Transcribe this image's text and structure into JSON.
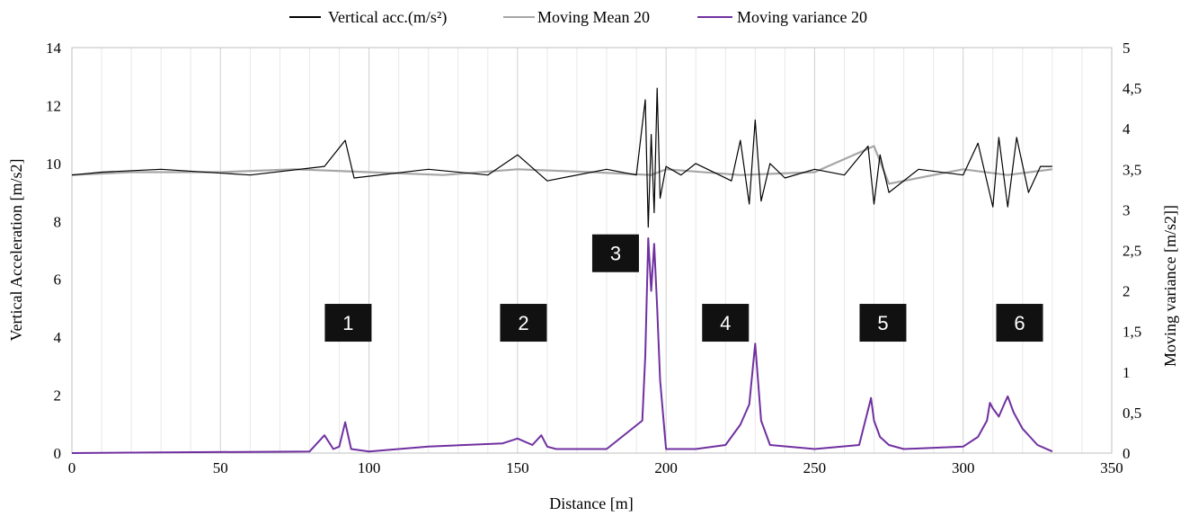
{
  "chart_data": {
    "type": "line",
    "xlabel": "Distance [m]",
    "ylabel": "Vertical Acceleration [m/s2]",
    "y2label": "Moving variance [m/s2]]",
    "xlim": [
      0,
      350
    ],
    "ylim": [
      0,
      14
    ],
    "y2lim": [
      0,
      5
    ],
    "x_ticks": [
      0,
      50,
      100,
      150,
      200,
      250,
      300,
      350
    ],
    "y_ticks": [
      0,
      2,
      4,
      6,
      8,
      10,
      12,
      14
    ],
    "y2_ticks": [
      "0",
      "0,5",
      "1",
      "1,5",
      "2",
      "2,5",
      "3",
      "3,5",
      "4",
      "4,5",
      "5"
    ],
    "grid": "vertical",
    "legend": "top-center",
    "series": [
      {
        "name": "Vertical acc.(m/s²)",
        "axis": "left",
        "color": "#000000",
        "x": [
          0,
          10,
          30,
          60,
          85,
          92,
          95,
          120,
          140,
          150,
          160,
          180,
          190,
          193,
          194,
          195,
          196,
          197,
          198,
          200,
          205,
          210,
          222,
          225,
          228,
          230,
          232,
          235,
          240,
          250,
          260,
          268,
          270,
          272,
          275,
          285,
          300,
          305,
          310,
          312,
          315,
          318,
          322,
          326,
          330
        ],
        "y": [
          9.6,
          9.7,
          9.8,
          9.6,
          9.9,
          10.8,
          9.5,
          9.8,
          9.6,
          10.3,
          9.4,
          9.8,
          9.6,
          12.2,
          7.8,
          11.0,
          8.3,
          12.6,
          8.8,
          9.9,
          9.6,
          10.0,
          9.4,
          10.8,
          8.6,
          11.5,
          8.7,
          10.0,
          9.5,
          9.8,
          9.6,
          10.6,
          8.6,
          10.3,
          9.0,
          9.8,
          9.6,
          10.7,
          8.5,
          10.9,
          8.5,
          10.9,
          9.0,
          9.9,
          9.9
        ]
      },
      {
        "name": "Moving Mean 20",
        "axis": "left",
        "color": "#a6a6a6",
        "x": [
          0,
          20,
          50,
          75,
          100,
          125,
          150,
          175,
          195,
          200,
          225,
          250,
          270,
          275,
          300,
          315,
          330
        ],
        "y": [
          9.6,
          9.7,
          9.7,
          9.8,
          9.7,
          9.6,
          9.8,
          9.7,
          9.6,
          9.8,
          9.6,
          9.7,
          10.6,
          9.3,
          9.8,
          9.6,
          9.8
        ]
      },
      {
        "name": "Moving variance 20",
        "axis": "right",
        "color": "#7030a0",
        "x": [
          0,
          80,
          85,
          88,
          90,
          92,
          94,
          100,
          120,
          145,
          150,
          155,
          158,
          160,
          163,
          180,
          192,
          193,
          194,
          195,
          196,
          197,
          198,
          200,
          210,
          220,
          225,
          228,
          230,
          232,
          235,
          250,
          265,
          269,
          270,
          272,
          275,
          280,
          300,
          305,
          308,
          309,
          310,
          312,
          314,
          315,
          317,
          320,
          325,
          330
        ],
        "y": [
          0,
          0.02,
          0.22,
          0.05,
          0.08,
          0.38,
          0.05,
          0.02,
          0.08,
          0.12,
          0.18,
          0.1,
          0.22,
          0.08,
          0.05,
          0.05,
          0.4,
          1.2,
          2.65,
          2.0,
          2.58,
          1.8,
          0.9,
          0.05,
          0.05,
          0.1,
          0.35,
          0.6,
          1.35,
          0.4,
          0.1,
          0.05,
          0.1,
          0.68,
          0.4,
          0.2,
          0.1,
          0.05,
          0.08,
          0.2,
          0.4,
          0.62,
          0.55,
          0.45,
          0.62,
          0.7,
          0.5,
          0.3,
          0.1,
          0.02
        ]
      }
    ],
    "annotations": [
      {
        "label": "1",
        "x": 93,
        "y": 4.5
      },
      {
        "label": "2",
        "x": 152,
        "y": 4.5
      },
      {
        "label": "3",
        "x": 183,
        "y": 6.9
      },
      {
        "label": "4",
        "x": 220,
        "y": 4.5
      },
      {
        "label": "5",
        "x": 273,
        "y": 4.5
      },
      {
        "label": "6",
        "x": 319,
        "y": 4.5
      }
    ]
  }
}
